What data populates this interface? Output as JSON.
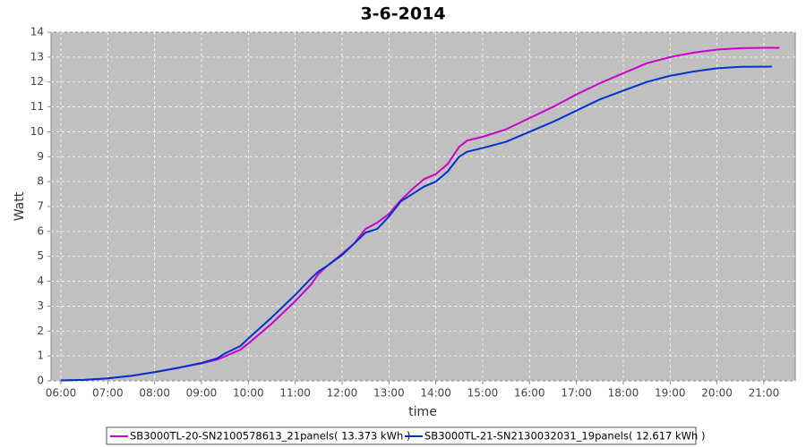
{
  "chart_data": {
    "type": "line",
    "title": "3-6-2014",
    "x_label": "time",
    "y_label": "Watt",
    "xlim": [
      5.79,
      21.67
    ],
    "ylim": [
      0,
      14
    ],
    "xticks": [
      {
        "value": 6,
        "label": "06:00"
      },
      {
        "value": 7,
        "label": "07:00"
      },
      {
        "value": 8,
        "label": "08:00"
      },
      {
        "value": 9,
        "label": "09:00"
      },
      {
        "value": 10,
        "label": "10:00"
      },
      {
        "value": 11,
        "label": "11:00"
      },
      {
        "value": 12,
        "label": "12:00"
      },
      {
        "value": 13,
        "label": "13:00"
      },
      {
        "value": 14,
        "label": "14:00"
      },
      {
        "value": 15,
        "label": "15:00"
      },
      {
        "value": 16,
        "label": "16:00"
      },
      {
        "value": 17,
        "label": "17:00"
      },
      {
        "value": 18,
        "label": "18:00"
      },
      {
        "value": 19,
        "label": "19:00"
      },
      {
        "value": 20,
        "label": "20:00"
      },
      {
        "value": 21,
        "label": "21:00"
      }
    ],
    "yticks": [
      0,
      1,
      2,
      3,
      4,
      5,
      6,
      7,
      8,
      9,
      10,
      11,
      12,
      13,
      14
    ],
    "grid": true,
    "legend": "bottom",
    "series": [
      {
        "name": "SB3000TL-20-SN2100578613_21panels( 13.373 kWh )",
        "color": "#cc00cc",
        "x": [
          6.0,
          6.5,
          7.0,
          7.5,
          8.0,
          8.5,
          9.0,
          9.33,
          9.5,
          9.83,
          10.0,
          10.5,
          11.0,
          11.33,
          11.5,
          11.67,
          12.0,
          12.25,
          12.5,
          12.75,
          13.0,
          13.25,
          13.5,
          13.75,
          14.0,
          14.25,
          14.5,
          14.67,
          15.0,
          15.5,
          16.0,
          16.5,
          17.0,
          17.5,
          18.0,
          18.5,
          19.0,
          19.5,
          20.0,
          20.5,
          21.0,
          21.33
        ],
        "values": [
          0.02,
          0.04,
          0.1,
          0.2,
          0.35,
          0.52,
          0.7,
          0.85,
          0.98,
          1.25,
          1.5,
          2.3,
          3.2,
          3.85,
          4.3,
          4.6,
          5.1,
          5.5,
          6.1,
          6.35,
          6.7,
          7.25,
          7.7,
          8.1,
          8.3,
          8.7,
          9.4,
          9.65,
          9.8,
          10.1,
          10.55,
          11.0,
          11.5,
          11.95,
          12.35,
          12.75,
          13.0,
          13.18,
          13.3,
          13.36,
          13.37,
          13.373
        ]
      },
      {
        "name": "SB3000TL-21-SN2130032031_19panels( 12.617 kWh )",
        "color": "#0033cc",
        "x": [
          6.0,
          6.5,
          7.0,
          7.5,
          8.0,
          8.5,
          9.0,
          9.33,
          9.5,
          9.83,
          10.0,
          10.5,
          11.0,
          11.33,
          11.5,
          11.67,
          12.0,
          12.25,
          12.5,
          12.75,
          13.0,
          13.25,
          13.5,
          13.75,
          14.0,
          14.25,
          14.5,
          14.67,
          15.0,
          15.5,
          16.0,
          16.5,
          17.0,
          17.5,
          18.0,
          18.5,
          19.0,
          19.5,
          20.0,
          20.5,
          21.17
        ],
        "values": [
          0.02,
          0.04,
          0.1,
          0.2,
          0.35,
          0.52,
          0.72,
          0.9,
          1.1,
          1.4,
          1.7,
          2.55,
          3.45,
          4.1,
          4.4,
          4.6,
          5.05,
          5.5,
          5.95,
          6.1,
          6.6,
          7.2,
          7.5,
          7.8,
          8.0,
          8.4,
          9.0,
          9.2,
          9.35,
          9.6,
          10.0,
          10.4,
          10.85,
          11.3,
          11.65,
          12.0,
          12.25,
          12.42,
          12.55,
          12.61,
          12.617
        ]
      }
    ]
  }
}
